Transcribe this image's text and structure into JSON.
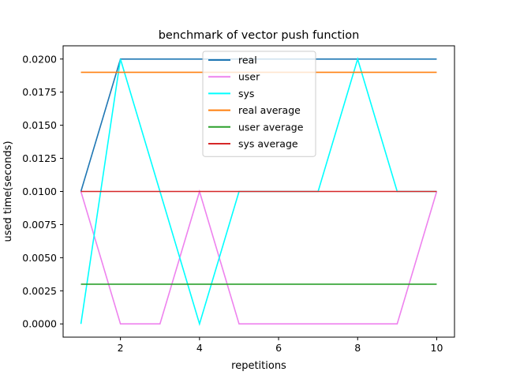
{
  "chart_data": {
    "type": "line",
    "title": "benchmark of vector push function",
    "xlabel": "repetitions",
    "ylabel": "used time(seconds)",
    "xlim": [
      0.55,
      10.45
    ],
    "ylim": [
      -0.001,
      0.021
    ],
    "xticks": [
      2,
      4,
      6,
      8,
      10
    ],
    "yticks": [
      0.0,
      0.0025,
      0.005,
      0.0075,
      0.01,
      0.0125,
      0.015,
      0.0175,
      0.02
    ],
    "ytick_labels": [
      "0.0000",
      "0.0025",
      "0.0050",
      "0.0075",
      "0.0100",
      "0.0125",
      "0.0150",
      "0.0175",
      "0.0200"
    ],
    "grid": false,
    "legend_position": "upper center",
    "x": [
      1,
      2,
      3,
      4,
      5,
      6,
      7,
      8,
      9,
      10
    ],
    "series": [
      {
        "name": "real",
        "color": "#1f77b4",
        "values": [
          0.01,
          0.02,
          0.02,
          0.02,
          0.02,
          0.02,
          0.02,
          0.02,
          0.02,
          0.02
        ]
      },
      {
        "name": "user",
        "color": "#ee82ee",
        "values": [
          0.01,
          0.0,
          0.0,
          0.01,
          0.0,
          0.0,
          0.0,
          0.0,
          0.0,
          0.01
        ]
      },
      {
        "name": "sys",
        "color": "#00ffff",
        "values": [
          0.0,
          0.02,
          0.01,
          0.0,
          0.01,
          0.01,
          0.01,
          0.02,
          0.01,
          0.01
        ]
      },
      {
        "name": "real average",
        "color": "#ff7f0e",
        "values": [
          0.019,
          0.019,
          0.019,
          0.019,
          0.019,
          0.019,
          0.019,
          0.019,
          0.019,
          0.019
        ]
      },
      {
        "name": "user average",
        "color": "#2ca02c",
        "values": [
          0.003,
          0.003,
          0.003,
          0.003,
          0.003,
          0.003,
          0.003,
          0.003,
          0.003,
          0.003
        ]
      },
      {
        "name": "sys average",
        "color": "#d62728",
        "values": [
          0.01,
          0.01,
          0.01,
          0.01,
          0.01,
          0.01,
          0.01,
          0.01,
          0.01,
          0.01
        ]
      }
    ]
  }
}
